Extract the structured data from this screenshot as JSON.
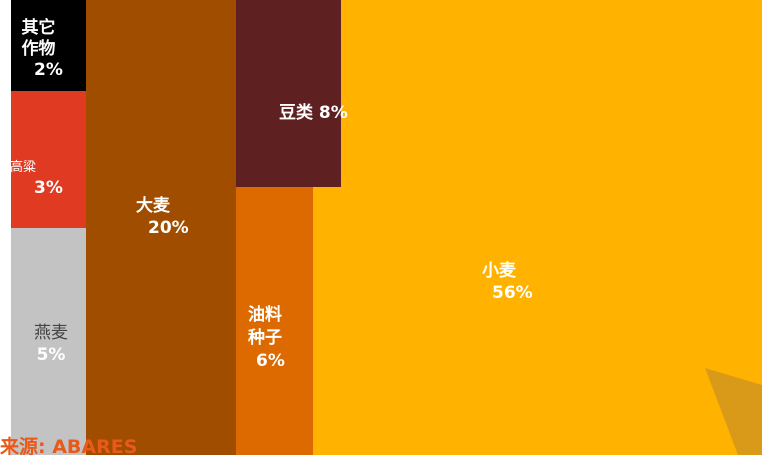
{
  "chart_data": {
    "type": "treemap",
    "unit": "%",
    "items": [
      {
        "name": "其它作物",
        "value": 2,
        "value_label": "2%",
        "color": "#000000",
        "text_color": "#ffffff"
      },
      {
        "name": "高粱",
        "value": 3,
        "value_label": "3%",
        "color": "#e03a22",
        "text_color": "#ffffff"
      },
      {
        "name": "燕麦",
        "value": 5,
        "value_label": "5%",
        "color": "#c3c3c3",
        "text_color": "#ffffff"
      },
      {
        "name": "大麦",
        "value": 20,
        "value_label": "20%",
        "color": "#a04d00",
        "text_color": "#ffffff"
      },
      {
        "name": "豆类",
        "value": 8,
        "value_label": "8%",
        "color": "#5e2020",
        "text_color": "#ffffff"
      },
      {
        "name": "油料种子",
        "value": 6,
        "value_label": "6%",
        "color": "#dc6a00",
        "text_color": "#ffffff"
      },
      {
        "name": "小麦",
        "value": 56,
        "value_label": "56%",
        "color": "#ffb300",
        "text_color": "#ffffff"
      }
    ]
  },
  "source": "来源: ABARES",
  "colors": {
    "source_text": "#e8591a",
    "corner_mark": "#d99a1a"
  }
}
